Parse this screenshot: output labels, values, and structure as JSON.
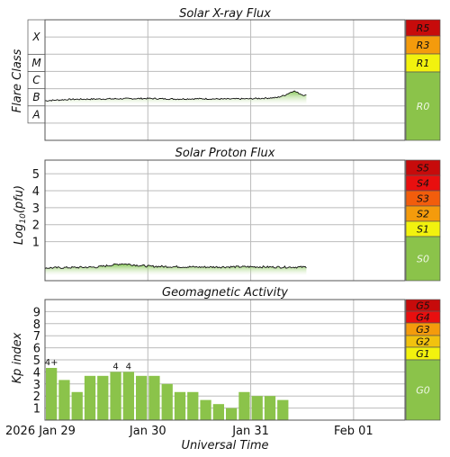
{
  "colors": {
    "green": "#8bc34a",
    "yellow": "#f2f20e",
    "orange": "#f49b0c",
    "red_orange": "#f25d0c",
    "red": "#e80f0f",
    "dark_red": "#c70b0b",
    "grid": "#bbbbbb",
    "trace": "#111111"
  },
  "time_axis": {
    "start": "2026-01-29T00:00",
    "end": "2026-02-01T12:00",
    "tick_labels": [
      {
        "t": "2026-01-29T00:00",
        "label": "2026 Jan 29"
      },
      {
        "t": "2026-01-30T00:00",
        "label": "Jan 30"
      },
      {
        "t": "2026-01-31T00:00",
        "label": "Jan 31"
      },
      {
        "t": "2026-02-01T00:00",
        "label": "Feb 01"
      }
    ],
    "xlabel": "Universal Time"
  },
  "chart_data": [
    {
      "type": "line",
      "title": "Solar X-ray Flux",
      "ylabel": "Flare Class",
      "y_scale": "log",
      "ylim": [
        "1e-9",
        "1e-2"
      ],
      "flare_classes": [
        {
          "label": "A",
          "flux": "1e-8"
        },
        {
          "label": "B",
          "flux": "1e-7"
        },
        {
          "label": "C",
          "flux": "1e-6"
        },
        {
          "label": "M",
          "flux": "1e-5"
        },
        {
          "label": "X",
          "flux": "1e-4"
        }
      ],
      "radio_blackout_scale": [
        {
          "label": "R5",
          "color": "#c70b0b"
        },
        {
          "label": "R3",
          "color": "#f49b0c"
        },
        {
          "label": "R1",
          "color": "#f2f20e"
        },
        {
          "label": "R0",
          "color": "#8bc34a"
        }
      ],
      "series": [
        {
          "x": [
            "2026-01-29T00:00",
            "2026-01-29T06:00",
            "2026-01-29T12:00",
            "2026-01-29T18:00",
            "2026-01-30T00:00",
            "2026-01-30T06:00",
            "2026-01-30T12:00",
            "2026-01-30T18:00",
            "2026-01-31T00:00",
            "2026-01-31T06:00",
            "2026-01-31T08:00",
            "2026-01-31T10:00",
            "2026-01-31T12:00",
            "2026-01-31T13:00"
          ],
          "flux": [
            "2.0e-7",
            "2.4e-7",
            "2.5e-7",
            "2.6e-7",
            "2.7e-7",
            "2.5e-7",
            "2.6e-7",
            "2.5e-7",
            "2.6e-7",
            "3.0e-7",
            "4.2e-7",
            "7.5e-7",
            "4.5e-7",
            "4.0e-7"
          ]
        }
      ]
    },
    {
      "type": "line",
      "title": "Solar Proton Flux",
      "ylabel": "Log10(pfu)",
      "ylim": [
        -1.3,
        5.8
      ],
      "yticks": [
        1,
        2,
        3,
        4,
        5
      ],
      "radiation_storm_scale": [
        {
          "label": "S5",
          "color": "#c70b0b"
        },
        {
          "label": "S4",
          "color": "#e80f0f"
        },
        {
          "label": "S3",
          "color": "#f25d0c"
        },
        {
          "label": "S2",
          "color": "#f49b0c"
        },
        {
          "label": "S1",
          "color": "#f2f20e"
        },
        {
          "label": "S0",
          "color": "#8bc34a"
        }
      ],
      "series": [
        {
          "x": [
            "2026-01-29T00:00",
            "2026-01-29T12:00",
            "2026-01-29T18:00",
            "2026-01-30T00:00",
            "2026-01-30T12:00",
            "2026-01-31T00:00",
            "2026-01-31T06:00",
            "2026-01-31T13:00"
          ],
          "log_pfu": [
            -0.55,
            -0.5,
            -0.3,
            -0.45,
            -0.5,
            -0.48,
            -0.5,
            -0.5
          ]
        }
      ]
    },
    {
      "type": "bar",
      "title": "Geomagnetic Activity",
      "ylabel": "Kp index",
      "ylim": [
        0,
        10
      ],
      "yticks": [
        1,
        2,
        3,
        4,
        5,
        6,
        7,
        8,
        9
      ],
      "storm_scale": [
        {
          "label": "G5",
          "color": "#c70b0b"
        },
        {
          "label": "G4",
          "color": "#e80f0f"
        },
        {
          "label": "G3",
          "color": "#f49b0c"
        },
        {
          "label": "G2",
          "color": "#f2c20e"
        },
        {
          "label": "G1",
          "color": "#f2f20e"
        },
        {
          "label": "G0",
          "color": "#8bc34a"
        }
      ],
      "x": [
        "2026-01-29T00:00",
        "2026-01-29T03:00",
        "2026-01-29T06:00",
        "2026-01-29T09:00",
        "2026-01-29T12:00",
        "2026-01-29T15:00",
        "2026-01-29T18:00",
        "2026-01-29T21:00",
        "2026-01-30T00:00",
        "2026-01-30T03:00",
        "2026-01-30T06:00",
        "2026-01-30T09:00",
        "2026-01-30T12:00",
        "2026-01-30T15:00",
        "2026-01-30T18:00",
        "2026-01-30T21:00",
        "2026-01-31T00:00",
        "2026-01-31T03:00",
        "2026-01-31T06:00"
      ],
      "values": [
        4.33,
        3.33,
        2.33,
        3.67,
        3.67,
        4.0,
        4.0,
        3.67,
        3.67,
        3.0,
        2.33,
        2.33,
        1.67,
        1.33,
        1.0,
        2.33,
        2.0,
        2.0,
        1.67
      ],
      "bar_labels": {
        "0": "4+",
        "5": "4",
        "6": "4"
      }
    }
  ]
}
